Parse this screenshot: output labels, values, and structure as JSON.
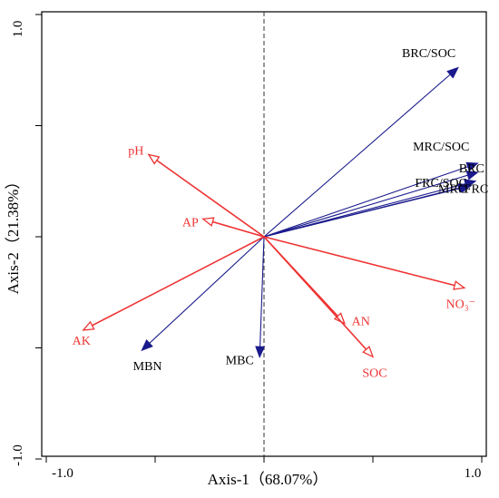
{
  "chart_data": {
    "type": "scatter",
    "subtype": "biplot",
    "title": "",
    "xlabel": "Axis-1（68.07%）",
    "ylabel": "Axis-2（21.38%）",
    "xlim": [
      -1.0,
      1.0
    ],
    "ylim": [
      -1.0,
      1.0
    ],
    "xticks": [
      "-1.0",
      "1.0"
    ],
    "yticks": [
      "1.0",
      "-1.0"
    ],
    "zero_line": "dashed vertical at x=0",
    "colors": {
      "blue": "#1a1a8c",
      "red": "#ee3333"
    },
    "series": [
      {
        "color": "blue",
        "arrow_head": "filled",
        "points": [
          {
            "label": "BRC/SOC",
            "x": 0.89,
            "y": 0.76
          },
          {
            "label": "MRC/SOC",
            "x": 0.98,
            "y": 0.33
          },
          {
            "label": "FRC/SOC",
            "x": 0.98,
            "y": 0.29
          },
          {
            "label": "BRC",
            "x": 0.97,
            "y": 0.25
          },
          {
            "label": "MRC",
            "x": 0.94,
            "y": 0.23
          },
          {
            "label": "FRC",
            "x": 0.95,
            "y": 0.23
          },
          {
            "label": "MBN",
            "x": -0.56,
            "y": -0.51
          },
          {
            "label": "MBC",
            "x": -0.02,
            "y": -0.54
          }
        ]
      },
      {
        "color": "red",
        "arrow_head": "open",
        "points": [
          {
            "label": "pH",
            "x": -0.53,
            "y": 0.37
          },
          {
            "label": "AP",
            "x": -0.28,
            "y": 0.08
          },
          {
            "label": "AK",
            "x": -0.83,
            "y": -0.42
          },
          {
            "label": "AN",
            "x": 0.37,
            "y": -0.39
          },
          {
            "label": "SOC",
            "x": 0.5,
            "y": -0.54
          },
          {
            "label": "NO₃⁻",
            "x": 0.92,
            "y": -0.23
          }
        ]
      }
    ]
  }
}
